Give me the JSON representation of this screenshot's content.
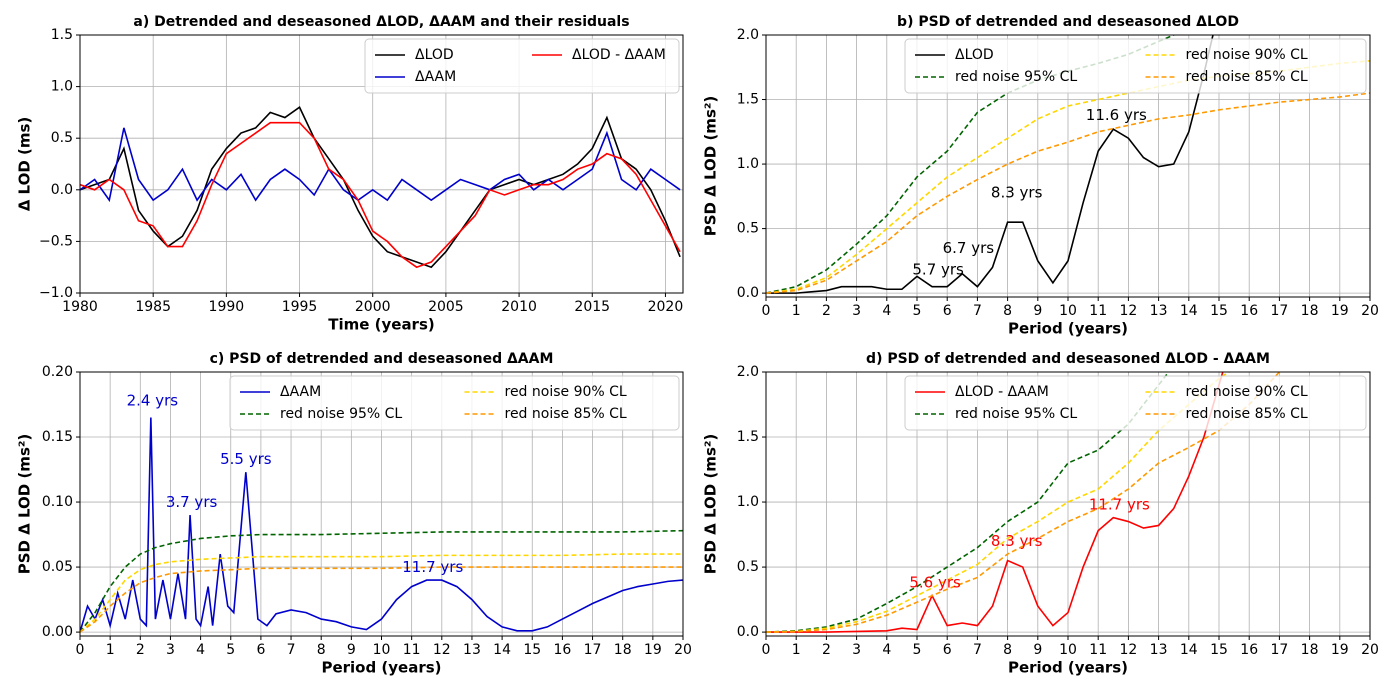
{
  "chart_data": [
    {
      "type": "line",
      "title": "a) Detrended and deseasoned ΔLOD, ΔAAM and their residuals",
      "xlabel": "Time (years)",
      "ylabel": "Δ LOD (ms)",
      "x": [
        1980,
        1981,
        1982,
        1983,
        1984,
        1985,
        1986,
        1987,
        1988,
        1989,
        1990,
        1991,
        1992,
        1993,
        1994,
        1995,
        1996,
        1997,
        1998,
        1999,
        2000,
        2001,
        2002,
        2003,
        2004,
        2005,
        2006,
        2007,
        2008,
        2009,
        2010,
        2011,
        2012,
        2013,
        2014,
        2015,
        2016,
        2017,
        2018,
        2019,
        2020,
        2021
      ],
      "xlim": [
        1980,
        2021.2
      ],
      "xticks": [
        1980,
        1985,
        1990,
        1995,
        2000,
        2005,
        2010,
        2015,
        2020
      ],
      "ylim": [
        -1,
        1.5
      ],
      "yticks": [
        {
          "value": -1,
          "label": "−1.0"
        },
        {
          "value": -0.5,
          "label": "−0.5"
        },
        {
          "value": 0,
          "label": "0.0"
        },
        {
          "value": 0.5,
          "label": "0.5"
        },
        {
          "value": 1,
          "label": "1.0"
        },
        {
          "value": 1.5,
          "label": "1.5"
        }
      ],
      "grid": true,
      "legend": "upper right",
      "series": [
        {
          "name": "ΔLOD",
          "color": "#000000",
          "linestyle": "solid",
          "values": [
            0.0,
            0.05,
            0.1,
            0.4,
            -0.2,
            -0.4,
            -0.55,
            -0.45,
            -0.2,
            0.2,
            0.4,
            0.55,
            0.6,
            0.75,
            0.7,
            0.8,
            0.5,
            0.3,
            0.1,
            -0.2,
            -0.45,
            -0.6,
            -0.65,
            -0.7,
            -0.75,
            -0.6,
            -0.4,
            -0.2,
            0.0,
            0.05,
            0.1,
            0.05,
            0.1,
            0.15,
            0.25,
            0.4,
            0.7,
            0.3,
            0.2,
            0.0,
            -0.3,
            -0.65
          ]
        },
        {
          "name": "ΔAAM",
          "color": "#0000cc",
          "linestyle": "solid",
          "values": [
            0.0,
            0.1,
            -0.1,
            0.6,
            0.1,
            -0.1,
            0.0,
            0.2,
            -0.1,
            0.1,
            0.0,
            0.15,
            -0.1,
            0.1,
            0.2,
            0.1,
            -0.05,
            0.2,
            0.0,
            -0.1,
            0.0,
            -0.1,
            0.1,
            0.0,
            -0.1,
            0.0,
            0.1,
            0.05,
            0.0,
            0.1,
            0.15,
            0.0,
            0.1,
            0.0,
            0.1,
            0.2,
            0.55,
            0.1,
            0.0,
            0.2,
            0.1,
            0.0
          ]
        },
        {
          "name": "ΔLOD - ΔAAM",
          "color": "#ff0000",
          "linestyle": "solid",
          "values": [
            0.05,
            0.0,
            0.1,
            0.0,
            -0.3,
            -0.35,
            -0.55,
            -0.55,
            -0.3,
            0.05,
            0.35,
            0.45,
            0.55,
            0.65,
            0.65,
            0.65,
            0.5,
            0.2,
            0.1,
            -0.1,
            -0.4,
            -0.5,
            -0.65,
            -0.75,
            -0.7,
            -0.55,
            -0.4,
            -0.25,
            0.0,
            -0.05,
            0.0,
            0.05,
            0.05,
            0.1,
            0.2,
            0.25,
            0.35,
            0.3,
            0.15,
            -0.1,
            -0.35,
            -0.6
          ]
        }
      ]
    },
    {
      "type": "line",
      "title": "b) PSD of detrended and deseasoned ΔLOD",
      "xlabel": "Period (years)",
      "ylabel": "PSD Δ LOD (ms²)",
      "xlim": [
        0,
        20
      ],
      "xticks": [
        0,
        1,
        2,
        3,
        4,
        5,
        6,
        7,
        8,
        9,
        10,
        11,
        12,
        13,
        14,
        15,
        16,
        17,
        18,
        19,
        20
      ],
      "ylim": [
        -0.03,
        2
      ],
      "yticks": [
        {
          "value": 0,
          "label": "0.0"
        },
        {
          "value": 0.5,
          "label": "0.5"
        },
        {
          "value": 1,
          "label": "1.0"
        },
        {
          "value": 1.5,
          "label": "1.5"
        },
        {
          "value": 2,
          "label": "2.0"
        }
      ],
      "grid": true,
      "legend": "upper right",
      "series": [
        {
          "name": "ΔLOD",
          "color": "#000000",
          "linestyle": "solid",
          "x": [
            0,
            0.5,
            1,
            1.5,
            2,
            2.5,
            3,
            3.5,
            4,
            4.5,
            5,
            5.5,
            6,
            6.5,
            7,
            7.5,
            8,
            8.5,
            9,
            9.5,
            10,
            10.5,
            11,
            11.5,
            12,
            12.5,
            13,
            13.5,
            14,
            14.5,
            15
          ],
          "values": [
            0,
            0,
            0,
            0.01,
            0.02,
            0.05,
            0.05,
            0.05,
            0.03,
            0.03,
            0.13,
            0.05,
            0.05,
            0.15,
            0.05,
            0.2,
            0.55,
            0.55,
            0.25,
            0.08,
            0.25,
            0.7,
            1.1,
            1.27,
            1.2,
            1.05,
            0.98,
            1.0,
            1.25,
            1.7,
            2.2
          ]
        },
        {
          "name": "red noise 95% CL",
          "color": "#006400",
          "linestyle": "dashed",
          "x": [
            0,
            1,
            2,
            3,
            4,
            5,
            6,
            7,
            8,
            9,
            10,
            11,
            12,
            13,
            14,
            15
          ],
          "values": [
            0,
            0.05,
            0.18,
            0.38,
            0.6,
            0.9,
            1.1,
            1.4,
            1.55,
            1.65,
            1.72,
            1.78,
            1.85,
            1.95,
            2.05,
            2.1
          ]
        },
        {
          "name": "red noise 90% CL",
          "color": "#ffd700",
          "linestyle": "dashed",
          "x": [
            0,
            1,
            2,
            3,
            4,
            5,
            6,
            7,
            8,
            9,
            10,
            11,
            12,
            13,
            14,
            15,
            16,
            17,
            18,
            19,
            20
          ],
          "values": [
            0,
            0.03,
            0.12,
            0.3,
            0.5,
            0.7,
            0.9,
            1.05,
            1.2,
            1.35,
            1.45,
            1.5,
            1.55,
            1.6,
            1.65,
            1.68,
            1.7,
            1.72,
            1.75,
            1.78,
            1.8
          ]
        },
        {
          "name": "red noise 85% CL",
          "color": "#ff9900",
          "linestyle": "dashed",
          "x": [
            0,
            1,
            2,
            3,
            4,
            5,
            6,
            7,
            8,
            9,
            10,
            11,
            12,
            13,
            14,
            15,
            16,
            17,
            18,
            19,
            20
          ],
          "values": [
            0,
            0.02,
            0.1,
            0.25,
            0.4,
            0.6,
            0.75,
            0.88,
            1.0,
            1.1,
            1.17,
            1.25,
            1.3,
            1.35,
            1.38,
            1.42,
            1.45,
            1.48,
            1.5,
            1.52,
            1.55
          ]
        }
      ],
      "annotations": [
        {
          "text": "5.7 yrs",
          "x": 5.7,
          "y": 0.1
        },
        {
          "text": "6.7 yrs",
          "x": 6.7,
          "y": 0.27
        },
        {
          "text": "8.3 yrs",
          "x": 8.3,
          "y": 0.7
        },
        {
          "text": "11.6 yrs",
          "x": 11.6,
          "y": 1.3
        }
      ]
    },
    {
      "type": "line",
      "title": "c) PSD of detrended and deseasoned ΔAAM",
      "xlabel": "Period (years)",
      "ylabel": "PSD Δ LOD (ms²)",
      "xlim": [
        0,
        20
      ],
      "xticks": [
        0,
        1,
        2,
        3,
        4,
        5,
        6,
        7,
        8,
        9,
        10,
        11,
        12,
        13,
        14,
        15,
        16,
        17,
        18,
        19,
        20
      ],
      "ylim": [
        -0.003,
        0.2
      ],
      "yticks": [
        {
          "value": 0,
          "label": "0.00"
        },
        {
          "value": 0.05,
          "label": "0.05"
        },
        {
          "value": 0.1,
          "label": "0.10"
        },
        {
          "value": 0.15,
          "label": "0.15"
        },
        {
          "value": 0.2,
          "label": "0.20"
        }
      ],
      "grid": true,
      "legend": "upper right",
      "series": [
        {
          "name": "ΔAAM",
          "color": "#0000cc",
          "linestyle": "solid",
          "x": [
            0,
            0.25,
            0.5,
            0.75,
            1,
            1.25,
            1.5,
            1.75,
            2,
            2.2,
            2.35,
            2.5,
            2.75,
            3,
            3.25,
            3.5,
            3.65,
            3.85,
            4,
            4.25,
            4.4,
            4.65,
            4.9,
            5.1,
            5.5,
            5.9,
            6.2,
            6.5,
            7,
            7.5,
            8,
            8.5,
            9,
            9.5,
            10,
            10.5,
            11,
            11.5,
            12,
            12.5,
            13,
            13.5,
            14,
            14.5,
            15,
            15.5,
            16,
            16.5,
            17,
            17.5,
            18,
            18.5,
            19,
            19.5,
            20
          ],
          "values": [
            0,
            0.02,
            0.01,
            0.025,
            0.005,
            0.03,
            0.01,
            0.04,
            0.01,
            0.005,
            0.165,
            0.01,
            0.04,
            0.01,
            0.045,
            0.01,
            0.09,
            0.01,
            0.005,
            0.035,
            0.005,
            0.06,
            0.02,
            0.015,
            0.123,
            0.01,
            0.005,
            0.014,
            0.017,
            0.015,
            0.01,
            0.008,
            0.004,
            0.002,
            0.01,
            0.025,
            0.035,
            0.04,
            0.04,
            0.035,
            0.025,
            0.012,
            0.004,
            0.001,
            0.001,
            0.004,
            0.01,
            0.016,
            0.022,
            0.027,
            0.032,
            0.035,
            0.037,
            0.039,
            0.04
          ]
        },
        {
          "name": "red noise 95% CL",
          "color": "#006400",
          "linestyle": "dashed",
          "x": [
            0,
            0.5,
            1,
            1.5,
            2,
            2.5,
            3,
            4,
            5,
            6,
            8,
            10,
            12,
            14,
            16,
            18,
            20
          ],
          "values": [
            0,
            0.015,
            0.035,
            0.05,
            0.06,
            0.065,
            0.068,
            0.072,
            0.074,
            0.075,
            0.075,
            0.076,
            0.077,
            0.077,
            0.077,
            0.077,
            0.078
          ]
        },
        {
          "name": "red noise 90% CL",
          "color": "#ffd700",
          "linestyle": "dashed",
          "x": [
            0,
            0.5,
            1,
            1.5,
            2,
            2.5,
            3,
            4,
            5,
            6,
            8,
            10,
            12,
            14,
            16,
            18,
            20
          ],
          "values": [
            0,
            0.01,
            0.025,
            0.04,
            0.048,
            0.052,
            0.054,
            0.056,
            0.057,
            0.058,
            0.058,
            0.058,
            0.059,
            0.059,
            0.059,
            0.06,
            0.06
          ]
        },
        {
          "name": "red noise 85% CL",
          "color": "#ff9900",
          "linestyle": "dashed",
          "x": [
            0,
            0.5,
            1,
            1.5,
            2,
            2.5,
            3,
            4,
            5,
            6,
            8,
            10,
            12,
            14,
            16,
            18,
            20
          ],
          "values": [
            0,
            0.008,
            0.02,
            0.03,
            0.038,
            0.042,
            0.045,
            0.047,
            0.048,
            0.049,
            0.049,
            0.049,
            0.05,
            0.05,
            0.05,
            0.05,
            0.05
          ]
        }
      ],
      "annotations": [
        {
          "text": "2.4 yrs",
          "x": 2.4,
          "y": 0.17
        },
        {
          "text": "3.7 yrs",
          "x": 3.7,
          "y": 0.092
        },
        {
          "text": "5.5 yrs",
          "x": 5.5,
          "y": 0.125
        },
        {
          "text": "11.7 yrs",
          "x": 11.7,
          "y": 0.042
        }
      ]
    },
    {
      "type": "line",
      "title": "d) PSD of detrended and deseasoned ΔLOD - ΔAAM",
      "xlabel": "Period (years)",
      "ylabel": "PSD Δ LOD (ms²)",
      "xlim": [
        0,
        20
      ],
      "xticks": [
        0,
        1,
        2,
        3,
        4,
        5,
        6,
        7,
        8,
        9,
        10,
        11,
        12,
        13,
        14,
        15,
        16,
        17,
        18,
        19,
        20
      ],
      "ylim": [
        -0.03,
        2
      ],
      "yticks": [
        {
          "value": 0,
          "label": "0.0"
        },
        {
          "value": 0.5,
          "label": "0.5"
        },
        {
          "value": 1,
          "label": "1.0"
        },
        {
          "value": 1.5,
          "label": "1.5"
        },
        {
          "value": 2,
          "label": "2.0"
        }
      ],
      "grid": true,
      "legend": "upper right",
      "series": [
        {
          "name": "ΔLOD - ΔAAM",
          "color": "#ff0000",
          "linestyle": "solid",
          "x": [
            0,
            1,
            2,
            3,
            4,
            4.5,
            5,
            5.5,
            6,
            6.5,
            7,
            7.5,
            8,
            8.5,
            9,
            9.5,
            10,
            10.5,
            11,
            11.5,
            12,
            12.5,
            13,
            13.5,
            14,
            14.5,
            15,
            15.5
          ],
          "values": [
            0,
            0,
            0,
            0.005,
            0.01,
            0.03,
            0.02,
            0.28,
            0.05,
            0.07,
            0.05,
            0.2,
            0.55,
            0.5,
            0.2,
            0.05,
            0.15,
            0.5,
            0.78,
            0.88,
            0.85,
            0.8,
            0.82,
            0.95,
            1.2,
            1.5,
            1.9,
            2.3
          ]
        },
        {
          "name": "red noise 95% CL",
          "color": "#006400",
          "linestyle": "dashed",
          "x": [
            0,
            1,
            2,
            3,
            4,
            5,
            6,
            7,
            8,
            9,
            10,
            11,
            12,
            13,
            13.5
          ],
          "values": [
            0,
            0.01,
            0.04,
            0.1,
            0.22,
            0.35,
            0.5,
            0.65,
            0.85,
            1.0,
            1.3,
            1.4,
            1.6,
            1.9,
            2.05
          ]
        },
        {
          "name": "red noise 90% CL",
          "color": "#ffd700",
          "linestyle": "dashed",
          "x": [
            0,
            1,
            2,
            3,
            4,
            5,
            6,
            7,
            8,
            9,
            10,
            11,
            12,
            13,
            14,
            15,
            16
          ],
          "values": [
            0,
            0.005,
            0.03,
            0.08,
            0.16,
            0.28,
            0.4,
            0.52,
            0.72,
            0.85,
            1.0,
            1.1,
            1.3,
            1.55,
            1.75,
            1.95,
            2.1
          ]
        },
        {
          "name": "red noise 85% CL",
          "color": "#ff9900",
          "linestyle": "dashed",
          "x": [
            0,
            1,
            2,
            3,
            4,
            5,
            6,
            7,
            8,
            9,
            10,
            11,
            12,
            13,
            14,
            15,
            16,
            17,
            17.5
          ],
          "values": [
            0,
            0.004,
            0.02,
            0.06,
            0.13,
            0.23,
            0.33,
            0.42,
            0.6,
            0.72,
            0.85,
            0.95,
            1.1,
            1.3,
            1.42,
            1.55,
            1.75,
            2.0,
            2.1
          ]
        }
      ],
      "annotations": [
        {
          "text": "5.6 yrs",
          "x": 5.6,
          "y": 0.3
        },
        {
          "text": "8.3 yrs",
          "x": 8.3,
          "y": 0.62
        },
        {
          "text": "11.7 yrs",
          "x": 11.7,
          "y": 0.9
        }
      ]
    }
  ]
}
